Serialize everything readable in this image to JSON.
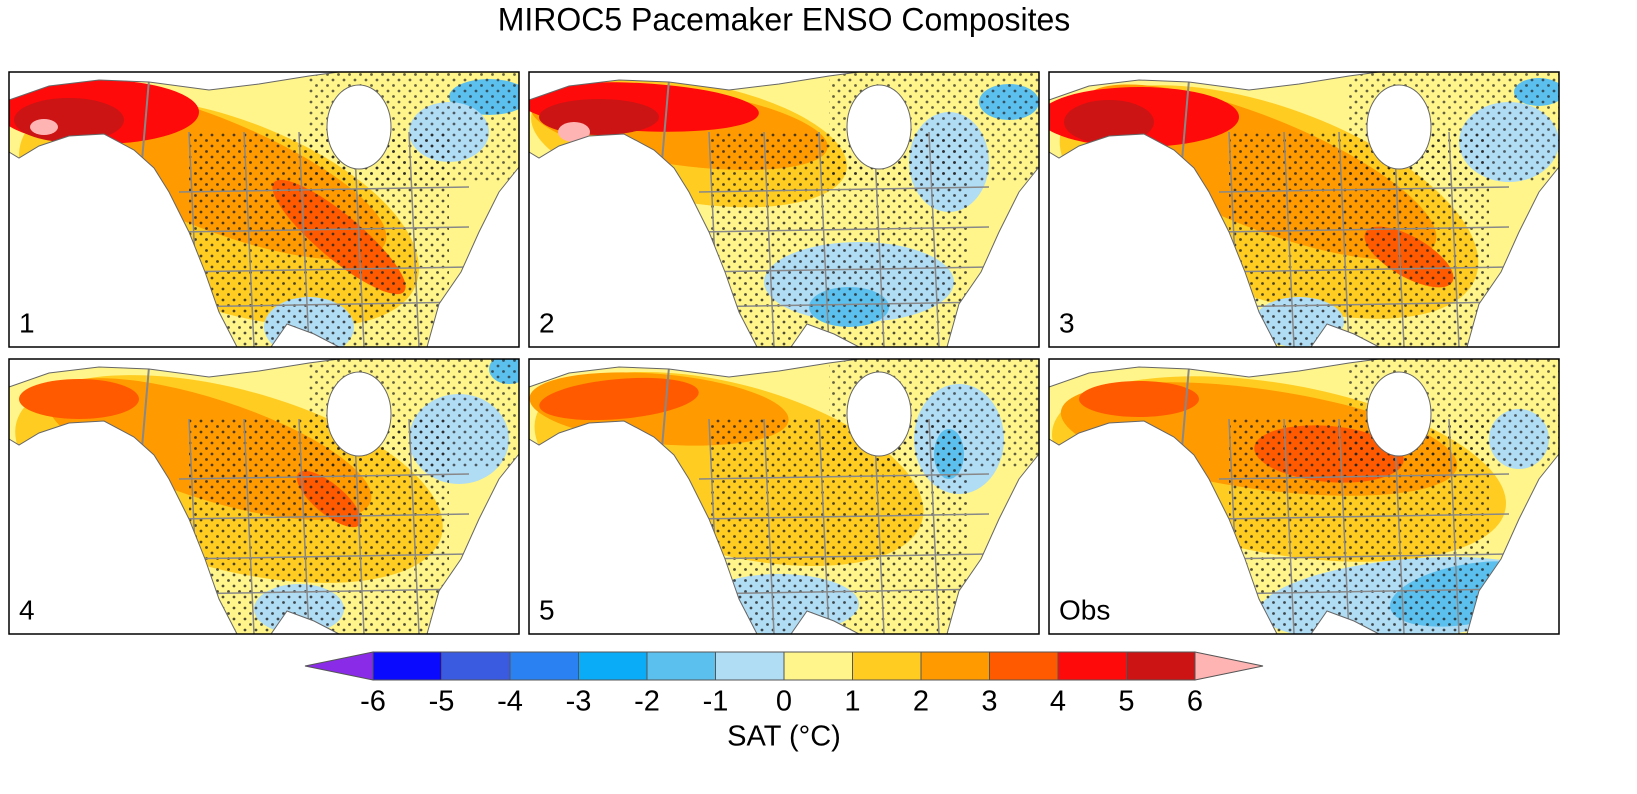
{
  "title": "MIROC5 Pacemaker ENSO Composites",
  "panels": [
    {
      "label": "1"
    },
    {
      "label": "2"
    },
    {
      "label": "3"
    },
    {
      "label": "4"
    },
    {
      "label": "5"
    },
    {
      "label": "Obs"
    }
  ],
  "colorbar": {
    "label": "SAT (°C)",
    "ticks": [
      -6,
      -5,
      -4,
      -3,
      -2,
      -1,
      0,
      1,
      2,
      3,
      4,
      5,
      6
    ],
    "colors": [
      "#8a2be8",
      "#0a0aff",
      "#3a5ae0",
      "#2a82f2",
      "#0aacf8",
      "#5cc0ee",
      "#b0dcf4",
      "#fff58a",
      "#ffcc22",
      "#ff9a00",
      "#ff5a00",
      "#ff0a0a",
      "#cc1414",
      "#ffb4b4"
    ]
  }
}
